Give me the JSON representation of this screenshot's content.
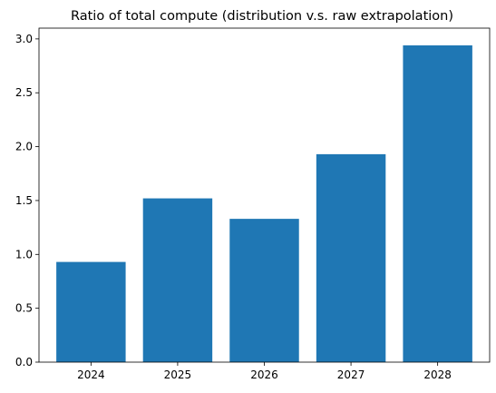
{
  "chart_data": {
    "type": "bar",
    "title": "Ratio of total compute (distribution v.s. raw extrapolation)",
    "xlabel": "",
    "ylabel": "",
    "categories": [
      "2024",
      "2025",
      "2026",
      "2027",
      "2028"
    ],
    "values": [
      0.93,
      1.52,
      1.33,
      1.93,
      2.94
    ],
    "ylim": [
      0,
      3.1
    ],
    "yticks": [
      0.0,
      0.5,
      1.0,
      1.5,
      2.0,
      2.5,
      3.0
    ],
    "ytick_labels": [
      "0.0",
      "0.5",
      "1.0",
      "1.5",
      "2.0",
      "2.5",
      "3.0"
    ],
    "bar_color": "#1f77b4",
    "grid": false,
    "legend": "none"
  }
}
